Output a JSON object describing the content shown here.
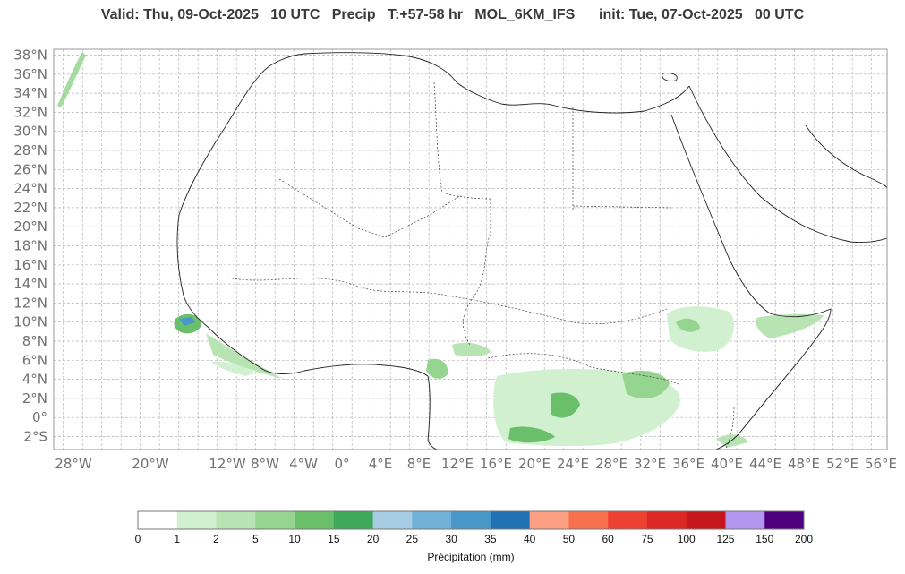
{
  "header": {
    "title": "Valid: Thu, 09-Oct-2025   10 UTC   Precip   T:+57-58 hr   MOL_6KM_IFS      init: Tue, 07-Oct-2025   00 UTC"
  },
  "map": {
    "lat_labels": [
      "38°N",
      "36°N",
      "34°N",
      "32°N",
      "30°N",
      "28°N",
      "26°N",
      "24°N",
      "22°N",
      "20°N",
      "18°N",
      "16°N",
      "14°N",
      "12°N",
      "10°N",
      "8°N",
      "6°N",
      "4°N",
      "2°N",
      "0°",
      "2°S"
    ],
    "lon_labels": [
      "28°W",
      "20°W",
      "12°W",
      "8°W",
      "4°W",
      "0°",
      "4°E",
      "8°E",
      "12°E",
      "16°E",
      "20°E",
      "24°E",
      "28°E",
      "32°E",
      "36°E",
      "40°E",
      "44°E",
      "48°E",
      "52°E",
      "56°E"
    ],
    "grid": true
  },
  "colorbar": {
    "ticks": [
      "0",
      "1",
      "2",
      "5",
      "10",
      "15",
      "20",
      "25",
      "30",
      "35",
      "40",
      "50",
      "60",
      "75",
      "100",
      "125",
      "150",
      "200"
    ],
    "colors": [
      "#ffffff",
      "#d1f0cf",
      "#b8e3b2",
      "#95d590",
      "#6abf6a",
      "#3ea85b",
      "#a6cde3",
      "#72b2d9",
      "#4a98c9",
      "#2172b5",
      "#fb9e82",
      "#f8714f",
      "#ed4133",
      "#dc2824",
      "#c4161b",
      "#b295ef",
      "#4f007f"
    ],
    "label": "Précipitation (mm)"
  }
}
